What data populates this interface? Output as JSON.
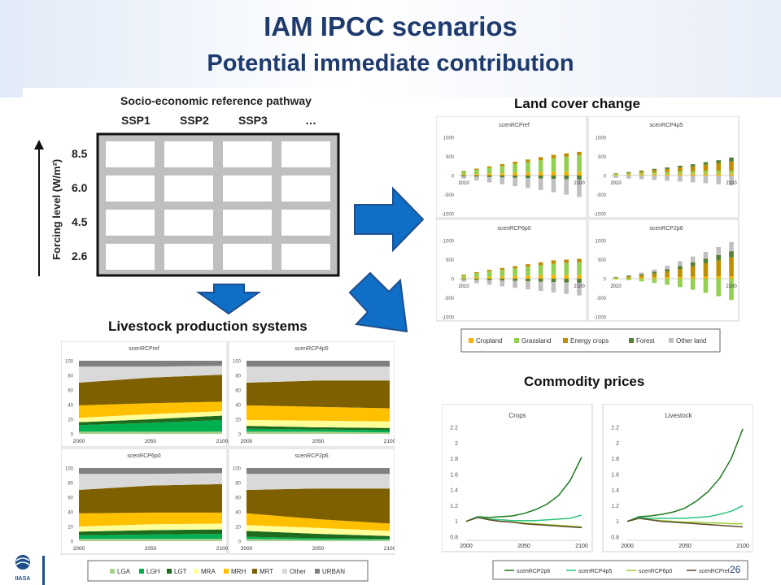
{
  "slide": {
    "title": "IAM IPCC scenarios",
    "subtitle": "Potential immediate contribution",
    "page_number": "26",
    "colors": {
      "title": "#1f3b6e",
      "arrow": "#0f6fc6",
      "arrow_edge": "#1f4e8c"
    }
  },
  "sections": {
    "land_cover": "Land cover change",
    "livestock": "Livestock production systems",
    "prices": "Commodity prices"
  },
  "matrix": {
    "header": "Socio-economic reference pathway",
    "columns": [
      "SSP1",
      "SSP2",
      "SSP3",
      "…"
    ],
    "axis_label": "Forcing level (W/m²)",
    "rows": [
      "8.5",
      "6.0",
      "4.5",
      "2.6"
    ]
  },
  "logo": {
    "text": "IIASA"
  },
  "chart_data": [
    {
      "type": "bar",
      "title": "scenRCPref",
      "x_tick_labels": [
        "2010",
        "2100"
      ],
      "y_ticks": [
        "1000",
        "500",
        "0",
        "-500",
        "-1000"
      ],
      "ylim": [
        -1000,
        1000
      ],
      "categories": [
        "2010",
        "2020",
        "2030",
        "2040",
        "2050",
        "2060",
        "2070",
        "2080",
        "2090",
        "2100"
      ],
      "series": [
        {
          "name": "Cropland",
          "values": [
            30,
            40,
            50,
            60,
            70,
            80,
            90,
            100,
            100,
            100
          ]
        },
        {
          "name": "Grassland",
          "values": [
            70,
            110,
            150,
            190,
            230,
            270,
            310,
            350,
            390,
            430
          ]
        },
        {
          "name": "Energy crops",
          "values": [
            20,
            30,
            40,
            50,
            60,
            70,
            80,
            90,
            90,
            90
          ]
        },
        {
          "name": "Forest",
          "values": [
            -20,
            -30,
            -40,
            -50,
            -60,
            -70,
            -80,
            -90,
            -100,
            -110
          ]
        },
        {
          "name": "Other land",
          "values": [
            -60,
            -100,
            -140,
            -180,
            -220,
            -260,
            -300,
            -350,
            -400,
            -450
          ]
        }
      ]
    },
    {
      "type": "bar",
      "title": "scenRCP4p5",
      "x_tick_labels": [
        "2010",
        "2100"
      ],
      "y_ticks": [
        "1000",
        "500",
        "0",
        "-500",
        "-1000"
      ],
      "ylim": [
        -1000,
        1000
      ],
      "categories": [
        "2010",
        "2020",
        "2030",
        "2040",
        "2050",
        "2060",
        "2070",
        "2080",
        "2090",
        "2100"
      ],
      "series": [
        {
          "name": "Cropland",
          "values": [
            20,
            25,
            30,
            35,
            40,
            45,
            45,
            50,
            50,
            50
          ]
        },
        {
          "name": "Grassland",
          "values": [
            20,
            30,
            40,
            50,
            50,
            60,
            60,
            70,
            70,
            70
          ]
        },
        {
          "name": "Energy crops",
          "values": [
            10,
            20,
            40,
            60,
            80,
            100,
            130,
            160,
            200,
            250
          ]
        },
        {
          "name": "Forest",
          "values": [
            10,
            15,
            20,
            30,
            40,
            50,
            60,
            70,
            80,
            100
          ]
        },
        {
          "name": "Other land",
          "values": [
            -60,
            -80,
            -100,
            -120,
            -140,
            -160,
            -180,
            -200,
            -230,
            -260
          ]
        }
      ]
    },
    {
      "type": "bar",
      "title": "scenRCP6p0",
      "x_tick_labels": [
        "2010",
        "2100"
      ],
      "y_ticks": [
        "1000",
        "500",
        "0",
        "-500",
        "-1000"
      ],
      "ylim": [
        -1000,
        1000
      ],
      "categories": [
        "2010",
        "2020",
        "2030",
        "2040",
        "2050",
        "2060",
        "2070",
        "2080",
        "2090",
        "2100"
      ],
      "series": [
        {
          "name": "Cropland",
          "values": [
            30,
            40,
            50,
            60,
            70,
            80,
            90,
            100,
            100,
            100
          ]
        },
        {
          "name": "Grassland",
          "values": [
            60,
            100,
            140,
            170,
            200,
            230,
            260,
            290,
            310,
            330
          ]
        },
        {
          "name": "Energy crops",
          "values": [
            20,
            30,
            40,
            50,
            60,
            70,
            80,
            90,
            90,
            90
          ]
        },
        {
          "name": "Forest",
          "values": [
            -20,
            -30,
            -40,
            -50,
            -60,
            -70,
            -80,
            -90,
            -100,
            -110
          ]
        },
        {
          "name": "Other land",
          "values": [
            -60,
            -90,
            -120,
            -150,
            -180,
            -210,
            -240,
            -270,
            -300,
            -330
          ]
        }
      ]
    },
    {
      "type": "bar",
      "title": "scenRCP2p6",
      "x_tick_labels": [
        "2010",
        "2100"
      ],
      "y_ticks": [
        "1000",
        "500",
        "0",
        "-500",
        "-1000"
      ],
      "ylim": [
        -1000,
        1000
      ],
      "categories": [
        "2010",
        "2020",
        "2030",
        "2040",
        "2050",
        "2060",
        "2070",
        "2080",
        "2090",
        "2100"
      ],
      "series": [
        {
          "name": "Cropland",
          "values": [
            20,
            25,
            30,
            35,
            40,
            45,
            50,
            55,
            60,
            60
          ]
        },
        {
          "name": "Grassland",
          "values": [
            -20,
            -40,
            -70,
            -110,
            -160,
            -220,
            -290,
            -370,
            -460,
            -560
          ]
        },
        {
          "name": "Energy crops",
          "values": [
            10,
            30,
            60,
            100,
            150,
            210,
            280,
            350,
            420,
            500
          ]
        },
        {
          "name": "Forest",
          "values": [
            10,
            20,
            30,
            45,
            60,
            80,
            100,
            120,
            140,
            160
          ]
        },
        {
          "name": "Other land",
          "values": [
            10,
            20,
            40,
            60,
            90,
            120,
            150,
            180,
            210,
            240
          ]
        }
      ]
    },
    {
      "type": "area",
      "title": "scenRCPref",
      "x": [
        2000,
        2050,
        2100
      ],
      "x_tick_labels": [
        "2000",
        "2050",
        "2100"
      ],
      "y_ticks": [
        "100",
        "80",
        "60",
        "40",
        "20",
        "0"
      ],
      "ylim": [
        0,
        100
      ],
      "series": [
        {
          "name": "LGA",
          "values": [
            3,
            3,
            3
          ]
        },
        {
          "name": "LGH",
          "values": [
            9,
            12,
            16
          ]
        },
        {
          "name": "LGT",
          "values": [
            4,
            5,
            6
          ]
        },
        {
          "name": "MRA",
          "values": [
            6,
            7,
            6
          ]
        },
        {
          "name": "MRH",
          "values": [
            17,
            15,
            13
          ]
        },
        {
          "name": "MRT",
          "values": [
            31,
            35,
            37
          ]
        },
        {
          "name": "Other",
          "values": [
            22,
            15,
            12
          ]
        },
        {
          "name": "URBAN",
          "values": [
            8,
            8,
            7
          ]
        }
      ]
    },
    {
      "type": "area",
      "title": "scenRCP4p5",
      "x": [
        2000,
        2050,
        2100
      ],
      "x_tick_labels": [
        "2000",
        "2050",
        "2100"
      ],
      "y_ticks": [
        "100",
        "80",
        "60",
        "40",
        "20",
        "0"
      ],
      "ylim": [
        0,
        100
      ],
      "series": [
        {
          "name": "LGA",
          "values": [
            3,
            3,
            2
          ]
        },
        {
          "name": "LGH",
          "values": [
            4,
            3,
            3
          ]
        },
        {
          "name": "LGT",
          "values": [
            4,
            3,
            3
          ]
        },
        {
          "name": "MRA",
          "values": [
            8,
            9,
            9
          ]
        },
        {
          "name": "MRH",
          "values": [
            20,
            19,
            18
          ]
        },
        {
          "name": "MRT",
          "values": [
            31,
            36,
            38
          ]
        },
        {
          "name": "Other",
          "values": [
            22,
            19,
            19
          ]
        },
        {
          "name": "URBAN",
          "values": [
            8,
            8,
            8
          ]
        }
      ]
    },
    {
      "type": "area",
      "title": "scenRCP6p0",
      "x": [
        2000,
        2050,
        2100
      ],
      "x_tick_labels": [
        "2000",
        "2050",
        "2100"
      ],
      "y_ticks": [
        "100",
        "80",
        "60",
        "40",
        "20",
        "0"
      ],
      "ylim": [
        0,
        100
      ],
      "series": [
        {
          "name": "LGA",
          "values": [
            3,
            3,
            3
          ]
        },
        {
          "name": "LGH",
          "values": [
            5,
            6,
            7
          ]
        },
        {
          "name": "LGT",
          "values": [
            5,
            6,
            6
          ]
        },
        {
          "name": "MRA",
          "values": [
            7,
            8,
            8
          ]
        },
        {
          "name": "MRH",
          "values": [
            18,
            16,
            15
          ]
        },
        {
          "name": "MRT",
          "values": [
            32,
            37,
            39
          ]
        },
        {
          "name": "Other",
          "values": [
            22,
            16,
            15
          ]
        },
        {
          "name": "URBAN",
          "values": [
            8,
            8,
            7
          ]
        }
      ]
    },
    {
      "type": "area",
      "title": "scenRCP2p6",
      "x": [
        2000,
        2050,
        2100
      ],
      "x_tick_labels": [
        "2000",
        "2050",
        "2100"
      ],
      "y_ticks": [
        "100",
        "80",
        "60",
        "40",
        "20",
        "0"
      ],
      "ylim": [
        0,
        100
      ],
      "series": [
        {
          "name": "LGA",
          "values": [
            3,
            2,
            2
          ]
        },
        {
          "name": "LGH",
          "values": [
            3,
            2,
            1
          ]
        },
        {
          "name": "LGT",
          "values": [
            8,
            6,
            4
          ]
        },
        {
          "name": "MRA",
          "values": [
            8,
            8,
            7
          ]
        },
        {
          "name": "MRH",
          "values": [
            16,
            12,
            10
          ]
        },
        {
          "name": "MRT",
          "values": [
            32,
            42,
            48
          ]
        },
        {
          "name": "Other",
          "values": [
            22,
            20,
            20
          ]
        },
        {
          "name": "URBAN",
          "values": [
            8,
            8,
            8
          ]
        }
      ]
    },
    {
      "type": "line",
      "title": "Crops",
      "x": [
        2000,
        2010,
        2020,
        2030,
        2040,
        2050,
        2060,
        2070,
        2080,
        2090,
        2100
      ],
      "x_tick_labels": [
        "2000",
        "2050",
        "2100"
      ],
      "y_ticks": [
        "2.2",
        "2",
        "1.8",
        "1.6",
        "1.4",
        "1.2",
        "1",
        "0.8"
      ],
      "ylim": [
        0.8,
        2.2
      ],
      "series": [
        {
          "name": "scenRCP2p6",
          "values": [
            1.0,
            1.06,
            1.05,
            1.06,
            1.07,
            1.1,
            1.15,
            1.22,
            1.33,
            1.52,
            1.82
          ]
        },
        {
          "name": "scenRCP4p5",
          "values": [
            1.0,
            1.06,
            1.03,
            1.02,
            1.01,
            1.01,
            1.01,
            1.02,
            1.03,
            1.04,
            1.08
          ]
        },
        {
          "name": "scenRCP6p0",
          "values": [
            1.0,
            1.05,
            1.02,
            1.0,
            0.99,
            0.98,
            0.97,
            0.96,
            0.95,
            0.94,
            0.93
          ]
        },
        {
          "name": "scenRCPref",
          "values": [
            1.0,
            1.05,
            1.02,
            1.0,
            0.99,
            0.97,
            0.96,
            0.95,
            0.94,
            0.93,
            0.92
          ]
        }
      ]
    },
    {
      "type": "line",
      "title": "Livestock",
      "x": [
        2000,
        2010,
        2020,
        2030,
        2040,
        2050,
        2060,
        2070,
        2080,
        2090,
        2100
      ],
      "x_tick_labels": [
        "2000",
        "2050",
        "2100"
      ],
      "y_ticks": [
        "2.2",
        "2",
        "1.8",
        "1.6",
        "1.4",
        "1.2",
        "1",
        "0.8"
      ],
      "ylim": [
        0.8,
        2.2
      ],
      "series": [
        {
          "name": "scenRCP2p6",
          "values": [
            1.0,
            1.06,
            1.07,
            1.09,
            1.12,
            1.17,
            1.26,
            1.38,
            1.55,
            1.8,
            2.18
          ]
        },
        {
          "name": "scenRCP4p5",
          "values": [
            1.0,
            1.05,
            1.04,
            1.04,
            1.04,
            1.04,
            1.05,
            1.06,
            1.09,
            1.13,
            1.2
          ]
        },
        {
          "name": "scenRCP6p0",
          "values": [
            1.0,
            1.04,
            1.02,
            1.01,
            1.0,
            0.99,
            0.99,
            0.98,
            0.98,
            0.97,
            0.97
          ]
        },
        {
          "name": "scenRCPref",
          "values": [
            1.0,
            1.04,
            1.02,
            1.0,
            0.99,
            0.98,
            0.97,
            0.96,
            0.95,
            0.94,
            0.93
          ]
        }
      ]
    }
  ],
  "legends": {
    "land": [
      {
        "name": "Cropland",
        "color": "#f4b400"
      },
      {
        "name": "Grassland",
        "color": "#92d050"
      },
      {
        "name": "Energy crops",
        "color": "#bf8f00"
      },
      {
        "name": "Forest",
        "color": "#548235"
      },
      {
        "name": "Other land",
        "color": "#bfbfbf"
      }
    ],
    "livestock": [
      {
        "name": "LGA",
        "color": "#a9d08e"
      },
      {
        "name": "LGH",
        "color": "#00b050"
      },
      {
        "name": "LGT",
        "color": "#1e6b1e"
      },
      {
        "name": "MRA",
        "color": "#ffff99"
      },
      {
        "name": "MRH",
        "color": "#ffc000"
      },
      {
        "name": "MRT",
        "color": "#7f6000"
      },
      {
        "name": "Other",
        "color": "#d9d9d9"
      },
      {
        "name": "URBAN",
        "color": "#808080"
      }
    ],
    "prices": [
      {
        "name": "scenRCP2p6",
        "color": "#1e7b1e"
      },
      {
        "name": "scenRCP4p5",
        "color": "#2ec27e"
      },
      {
        "name": "scenRCP6p0",
        "color": "#9acd32"
      },
      {
        "name": "scenRCPref",
        "color": "#5c4a2a"
      }
    ]
  }
}
